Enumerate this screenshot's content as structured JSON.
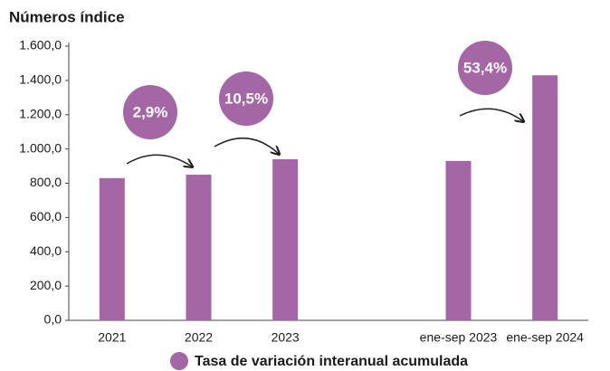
{
  "chart_data": {
    "type": "bar",
    "title": "Números índice",
    "categories": [
      "2021",
      "2022",
      "2023",
      null,
      "ene-sep 2023",
      "ene-sep 2024"
    ],
    "values": [
      830,
      850,
      940,
      null,
      930,
      1430
    ],
    "color": "#a566a6",
    "ylim": [
      0,
      1600
    ],
    "yticks": [
      {
        "value": 0,
        "label": "0,0"
      },
      {
        "value": 200,
        "label": "200,0"
      },
      {
        "value": 400,
        "label": "400,0"
      },
      {
        "value": 600,
        "label": "600,0"
      },
      {
        "value": 800,
        "label": "800,0"
      },
      {
        "value": 1000,
        "label": "1.000,0"
      },
      {
        "value": 1200,
        "label": "1.200,0"
      },
      {
        "value": 1400,
        "label": "1.400,0"
      },
      {
        "value": 1600,
        "label": "1.600,0"
      }
    ],
    "annotations": [
      "2,9%",
      "10,5%",
      "53,4%"
    ],
    "legend_label": "Tasa de variación interanual acumulada",
    "grid": false
  }
}
